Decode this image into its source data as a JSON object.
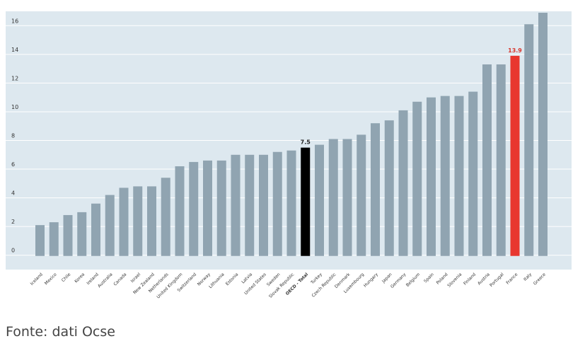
{
  "chart_data": {
    "type": "bar",
    "title": "",
    "xlabel": "",
    "ylabel": "",
    "ylim": [
      -1,
      17
    ],
    "yticks": [
      0,
      2,
      4,
      6,
      8,
      10,
      12,
      14,
      16
    ],
    "grid": true,
    "categories": [
      "Iceland",
      "Mexico",
      "Chile",
      "Korea",
      "Ireland",
      "Australia",
      "Canada",
      "Israel",
      "New Zealand",
      "Netherlands",
      "United Kingdom",
      "Switzerland",
      "Norway",
      "Lithuania",
      "Estonia",
      "Latvia",
      "United States",
      "Sweden",
      "Slovak Republic",
      "OECD - Total",
      "Turkey",
      "Czech Republic",
      "Denmark",
      "Luxembourg",
      "Hungary",
      "Japan",
      "Germany",
      "Belgium",
      "Spain",
      "Poland",
      "Slovenia",
      "Finland",
      "Austria",
      "Portugal",
      "France",
      "Italy",
      "Greece"
    ],
    "values": [
      2.1,
      2.3,
      2.8,
      3.0,
      3.6,
      4.2,
      4.7,
      4.8,
      4.8,
      5.4,
      6.2,
      6.5,
      6.6,
      6.6,
      7.0,
      7.0,
      7.0,
      7.2,
      7.3,
      7.5,
      7.7,
      8.1,
      8.1,
      8.4,
      9.2,
      9.4,
      10.1,
      10.7,
      11.0,
      11.1,
      11.1,
      11.4,
      13.3,
      13.3,
      13.9,
      16.1,
      16.9
    ],
    "highlight": {
      "OECD - Total": "black",
      "France": "red"
    },
    "data_labels": [
      {
        "category": "OECD - Total",
        "text": "7.5"
      },
      {
        "category": "France",
        "text": "13.9"
      }
    ],
    "colors": {
      "bar": "#90a4b1",
      "oecd": "#000000",
      "france": "#e8372f",
      "france_label": "#d9362d",
      "plot_bg": "#dde8ef",
      "grid": "#ffffff"
    }
  },
  "source_text": "Fonte: dati Ocse"
}
